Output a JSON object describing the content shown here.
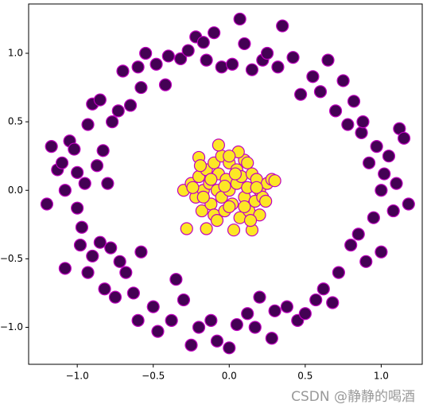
{
  "chart_data": {
    "type": "scatter",
    "xlim": [
      -1.32,
      1.27
    ],
    "ylim": [
      -1.27,
      1.36
    ],
    "xticks": [
      {
        "value": -1,
        "label": "−1.0"
      },
      {
        "value": -0.5,
        "label": "−0.5"
      },
      {
        "value": 0,
        "label": "0.0"
      },
      {
        "value": 0.5,
        "label": "0.5"
      },
      {
        "value": 1,
        "label": "1.0"
      }
    ],
    "yticks": [
      {
        "value": -1,
        "label": "−1.0"
      },
      {
        "value": -0.5,
        "label": "−0.5"
      },
      {
        "value": 0,
        "label": "0.0"
      },
      {
        "value": 0.5,
        "label": "0.5"
      },
      {
        "value": 1,
        "label": "1.0"
      }
    ],
    "edgecolor": "#c000c0",
    "series": [
      {
        "color": "#440154",
        "x": [
          -1.2,
          -1.17,
          -1.13,
          -1.1,
          -1.08,
          -1.08,
          -1.05,
          -1.02,
          -1.0,
          -1.0,
          -0.98,
          -0.97,
          -0.95,
          -0.93,
          -0.9,
          -0.9,
          -0.87,
          -0.85,
          -0.83,
          -0.82,
          -0.8,
          -0.78,
          -0.77,
          -0.75,
          -0.73,
          -0.72,
          -0.7,
          -0.68,
          -0.65,
          -0.63,
          -0.6,
          -0.6,
          -0.58,
          -0.55,
          -0.5,
          -0.48,
          -0.47,
          -0.42,
          -0.4,
          -0.38,
          -0.35,
          -0.32,
          -0.3,
          -0.27,
          -0.25,
          -0.22,
          -0.2,
          -0.17,
          -0.15,
          -0.12,
          -0.1,
          -0.08,
          -0.05,
          0.0,
          0.02,
          0.05,
          0.07,
          0.1,
          0.12,
          0.15,
          0.17,
          0.2,
          0.22,
          0.25,
          0.28,
          0.3,
          0.32,
          0.35,
          0.38,
          0.42,
          0.45,
          0.47,
          0.5,
          0.55,
          0.57,
          0.6,
          0.62,
          0.65,
          0.68,
          0.7,
          0.72,
          0.75,
          0.78,
          0.8,
          0.82,
          0.85,
          0.87,
          0.9,
          0.92,
          0.95,
          0.97,
          1.0,
          1.02,
          1.05,
          1.08,
          1.1,
          1.12,
          1.15,
          1.18,
          -0.85,
          -0.93,
          0.88,
          1.0,
          -0.58
        ],
        "y": [
          -0.1,
          0.32,
          0.15,
          0.2,
          0.0,
          -0.57,
          0.36,
          0.3,
          0.13,
          -0.13,
          -0.4,
          -0.27,
          0.05,
          -0.6,
          0.63,
          -0.48,
          0.18,
          -0.38,
          0.29,
          -0.72,
          0.05,
          -0.42,
          0.5,
          -0.78,
          0.58,
          -0.52,
          0.87,
          -0.6,
          0.62,
          -0.75,
          0.9,
          -0.95,
          0.75,
          1.0,
          -0.85,
          0.92,
          -1.03,
          0.77,
          0.98,
          -0.95,
          -0.65,
          0.96,
          -0.8,
          1.02,
          -1.13,
          1.12,
          -1.0,
          1.08,
          0.95,
          -0.95,
          1.15,
          -1.1,
          0.9,
          -1.15,
          0.92,
          -0.98,
          1.25,
          1.07,
          -0.9,
          0.88,
          -1.0,
          -0.78,
          0.95,
          1.0,
          -1.08,
          -0.88,
          0.9,
          1.2,
          -0.85,
          0.97,
          -0.95,
          0.7,
          -0.9,
          0.83,
          -0.8,
          0.72,
          -0.72,
          0.95,
          -0.82,
          0.58,
          -0.6,
          0.8,
          0.48,
          -0.4,
          0.65,
          -0.32,
          0.42,
          -0.52,
          0.2,
          -0.2,
          0.32,
          -0.45,
          0.12,
          0.25,
          -0.15,
          0.05,
          0.45,
          0.38,
          -0.1,
          0.66,
          0.48,
          0.5,
          0.0,
          -0.45
        ]
      },
      {
        "color": "#fde725",
        "x": [
          -0.3,
          -0.28,
          -0.25,
          -0.22,
          -0.2,
          -0.2,
          -0.18,
          -0.17,
          -0.15,
          -0.15,
          -0.13,
          -0.12,
          -0.1,
          -0.1,
          -0.08,
          -0.07,
          -0.05,
          -0.05,
          -0.03,
          -0.02,
          0.0,
          0.0,
          0.02,
          0.03,
          0.05,
          0.05,
          0.07,
          0.08,
          0.1,
          0.1,
          0.12,
          0.13,
          0.15,
          0.15,
          0.17,
          0.18,
          0.2,
          0.2,
          0.22,
          0.25,
          0.28,
          0.3,
          -0.07,
          0.0,
          0.14,
          -0.17,
          0.06,
          -0.24,
          0.1,
          -0.12,
          0.04,
          -0.03,
          0.18,
          -0.08,
          0.24,
          0.0,
          -0.19,
          0.12
        ],
        "y": [
          0.0,
          -0.28,
          0.05,
          -0.05,
          0.1,
          0.24,
          -0.15,
          0.0,
          -0.28,
          0.15,
          0.05,
          -0.1,
          0.2,
          -0.18,
          0.0,
          0.12,
          -0.05,
          0.25,
          -0.15,
          0.08,
          0.0,
          0.2,
          -0.1,
          -0.29,
          0.05,
          0.15,
          -0.2,
          0.1,
          -0.05,
          0.22,
          0.02,
          -0.15,
          0.12,
          -0.29,
          -0.08,
          0.08,
          0.0,
          -0.18,
          -0.05,
          0.05,
          0.08,
          0.07,
          0.33,
          -0.12,
          -0.22,
          -0.05,
          0.28,
          0.02,
          -0.12,
          0.08,
          0.12,
          0.03,
          0.02,
          -0.22,
          -0.08,
          0.25,
          0.18,
          0.2
        ]
      }
    ],
    "watermark": "CSDN @静静的喝酒"
  }
}
